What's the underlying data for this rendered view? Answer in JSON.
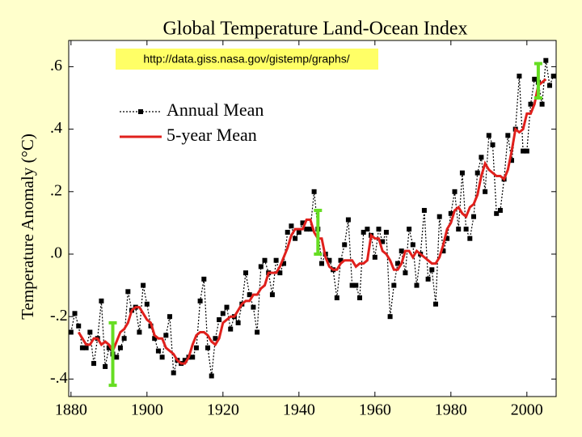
{
  "chart_data": {
    "type": "line",
    "title": "Global Temperature Land-Ocean Index",
    "annotation": "http://data.giss.nasa.gov/gistemp/graphs/",
    "y_label": "Temperature Anomaly (°C)",
    "legend": "upper left",
    "x": [
      1880,
      1881,
      1882,
      1883,
      1884,
      1885,
      1886,
      1887,
      1888,
      1889,
      1890,
      1891,
      1892,
      1893,
      1894,
      1895,
      1896,
      1897,
      1898,
      1899,
      1900,
      1901,
      1902,
      1903,
      1904,
      1905,
      1906,
      1907,
      1908,
      1909,
      1910,
      1911,
      1912,
      1913,
      1914,
      1915,
      1916,
      1917,
      1918,
      1919,
      1920,
      1921,
      1922,
      1923,
      1924,
      1925,
      1926,
      1927,
      1928,
      1929,
      1930,
      1931,
      1932,
      1933,
      1934,
      1935,
      1936,
      1937,
      1938,
      1939,
      1940,
      1941,
      1942,
      1943,
      1944,
      1945,
      1946,
      1947,
      1948,
      1949,
      1950,
      1951,
      1952,
      1953,
      1954,
      1955,
      1956,
      1957,
      1958,
      1959,
      1960,
      1961,
      1962,
      1963,
      1964,
      1965,
      1966,
      1967,
      1968,
      1969,
      1970,
      1971,
      1972,
      1973,
      1974,
      1975,
      1976,
      1977,
      1978,
      1979,
      1980,
      1981,
      1982,
      1983,
      1984,
      1985,
      1986,
      1987,
      1988,
      1989,
      1990,
      1991,
      1992,
      1993,
      1994,
      1995,
      1996,
      1997,
      1998,
      1999,
      2000,
      2001,
      2002,
      2003,
      2004,
      2005,
      2006,
      2007
    ],
    "series": [
      {
        "name": "Annual Mean",
        "color": "#000000",
        "values": [
          -0.25,
          -0.19,
          -0.23,
          -0.3,
          -0.3,
          -0.25,
          -0.35,
          -0.27,
          -0.15,
          -0.36,
          -0.3,
          -0.32,
          -0.33,
          -0.3,
          -0.27,
          -0.12,
          -0.18,
          -0.17,
          -0.25,
          -0.1,
          -0.16,
          -0.23,
          -0.27,
          -0.31,
          -0.33,
          -0.26,
          -0.2,
          -0.38,
          -0.34,
          -0.35,
          -0.34,
          -0.33,
          -0.33,
          -0.3,
          -0.15,
          -0.08,
          -0.3,
          -0.39,
          -0.27,
          -0.21,
          -0.19,
          -0.17,
          -0.24,
          -0.2,
          -0.22,
          -0.16,
          -0.06,
          -0.13,
          -0.17,
          -0.25,
          -0.04,
          -0.02,
          -0.06,
          -0.13,
          -0.02,
          -0.06,
          -0.03,
          0.07,
          0.09,
          0.05,
          0.07,
          0.1,
          0.08,
          0.08,
          0.2,
          0.08,
          -0.03,
          0.0,
          -0.02,
          -0.05,
          -0.14,
          -0.02,
          0.03,
          0.11,
          -0.1,
          -0.1,
          -0.14,
          0.07,
          0.08,
          0.06,
          -0.01,
          0.08,
          0.04,
          0.07,
          -0.2,
          -0.1,
          -0.03,
          0.01,
          -0.06,
          0.08,
          0.03,
          -0.1,
          0.0,
          0.14,
          -0.08,
          -0.05,
          -0.16,
          0.12,
          0.01,
          0.05,
          0.13,
          0.2,
          0.08,
          0.26,
          0.08,
          0.05,
          0.12,
          0.26,
          0.31,
          0.2,
          0.38,
          0.35,
          0.13,
          0.14,
          0.24,
          0.38,
          0.3,
          0.4,
          0.57,
          0.33,
          0.33,
          0.48,
          0.56,
          0.55,
          0.48,
          0.62,
          0.54,
          0.57
        ]
      },
      {
        "name": "5-year Mean",
        "color": "#e0201c",
        "values": [
          null,
          null,
          -0.25,
          -0.27,
          -0.29,
          -0.29,
          -0.27,
          -0.27,
          -0.29,
          -0.28,
          -0.29,
          -0.31,
          -0.28,
          -0.25,
          -0.24,
          -0.22,
          -0.18,
          -0.17,
          -0.17,
          -0.19,
          -0.21,
          -0.22,
          -0.26,
          -0.27,
          -0.27,
          -0.3,
          -0.31,
          -0.32,
          -0.34,
          -0.35,
          -0.35,
          -0.33,
          -0.29,
          -0.26,
          -0.25,
          -0.25,
          -0.26,
          -0.28,
          -0.29,
          -0.27,
          -0.22,
          -0.21,
          -0.2,
          -0.2,
          -0.18,
          -0.16,
          -0.15,
          -0.15,
          -0.13,
          -0.13,
          -0.11,
          -0.1,
          -0.06,
          -0.06,
          -0.06,
          -0.04,
          -0.01,
          0.02,
          0.06,
          0.08,
          0.08,
          0.08,
          0.11,
          0.11,
          0.07,
          0.05,
          0.05,
          -0.01,
          -0.04,
          -0.05,
          -0.05,
          -0.03,
          -0.02,
          -0.02,
          -0.02,
          -0.04,
          -0.03,
          -0.03,
          -0.02,
          0.06,
          0.05,
          0.05,
          0.01,
          0.0,
          -0.02,
          -0.05,
          -0.05,
          -0.03,
          0.01,
          0.01,
          -0.01,
          0.01,
          0.0,
          -0.01,
          -0.02,
          -0.03,
          -0.03,
          -0.01,
          0.03,
          0.08,
          0.1,
          0.14,
          0.15,
          0.13,
          0.12,
          0.15,
          0.16,
          0.19,
          0.25,
          0.29,
          0.27,
          0.26,
          0.25,
          0.25,
          0.24,
          0.27,
          0.33,
          0.4,
          0.39,
          0.4,
          0.45,
          0.45,
          0.48,
          0.54,
          0.55,
          0.56,
          null,
          null
        ]
      }
    ],
    "uncertainty_color": "#66dd22",
    "uncertainty": [
      {
        "x": 1891,
        "low": -0.42,
        "high": -0.22
      },
      {
        "x": 1945,
        "low": 0.0,
        "high": 0.14
      },
      {
        "x": 2003,
        "low": 0.5,
        "high": 0.61
      }
    ],
    "xlim": [
      1879.4,
      2007.7
    ],
    "ylim": [
      -0.456,
      0.684
    ],
    "xticks": [
      1880,
      1900,
      1920,
      1940,
      1960,
      1980,
      2000
    ],
    "yticks": [
      {
        "value": 0.6,
        "label": ".6"
      },
      {
        "value": 0.4,
        "label": ".4"
      },
      {
        "value": 0.2,
        "label": ".2"
      },
      {
        "value": 0.0,
        "label": ".0"
      },
      {
        "value": -0.2,
        "label": "-.2"
      },
      {
        "value": -0.4,
        "label": "-.4"
      }
    ]
  }
}
